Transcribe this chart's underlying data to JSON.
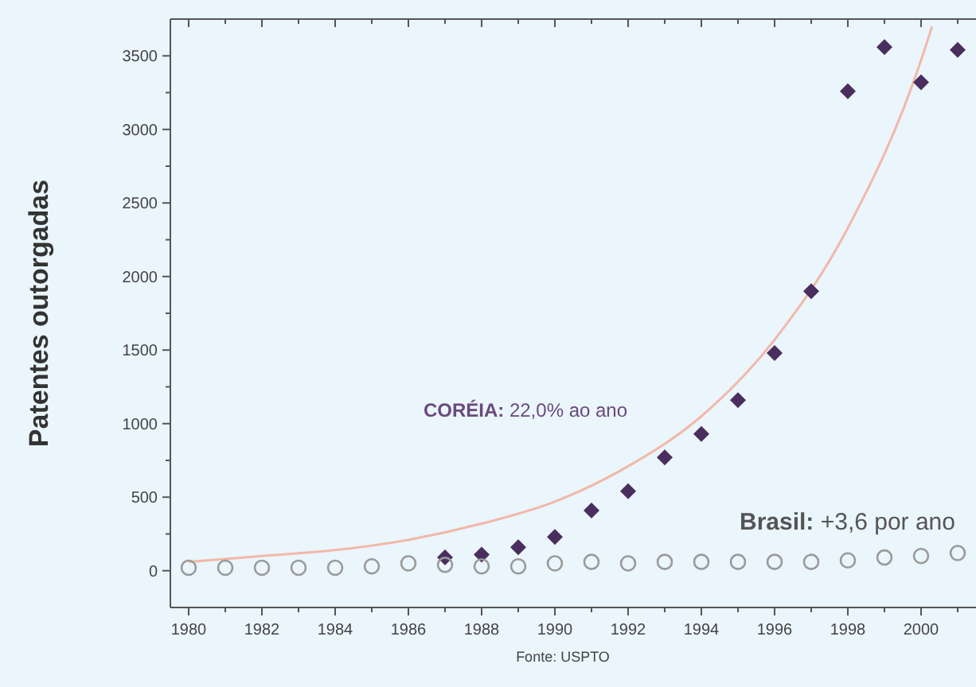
{
  "chart_data": {
    "type": "scatter",
    "ylabel": "Patentes outorgadas",
    "xlim": [
      1979.5,
      2001.5
    ],
    "ylim": [
      -250,
      3750
    ],
    "xticks": [
      1980,
      {
        "value": 1981,
        "label": null
      },
      1982,
      {
        "value": 1983,
        "label": null
      },
      1984,
      {
        "value": 1985,
        "label": null
      },
      1986,
      {
        "value": 1987,
        "label": null
      },
      1988,
      {
        "value": 1989,
        "label": null
      },
      1990,
      {
        "value": 1991,
        "label": null
      },
      1992,
      {
        "value": 1993,
        "label": null
      },
      1994,
      {
        "value": 1995,
        "label": null
      },
      1996,
      {
        "value": 1997,
        "label": null
      },
      1998,
      {
        "value": 1999,
        "label": null
      },
      2000,
      {
        "value": 2001,
        "label": null
      }
    ],
    "yticks": [
      0,
      {
        "value": 250,
        "label": null
      },
      500,
      {
        "value": 750,
        "label": null
      },
      1000,
      {
        "value": 1250,
        "label": null
      },
      1500,
      {
        "value": 1750,
        "label": null
      },
      2000,
      {
        "value": 2250,
        "label": null
      },
      2500,
      {
        "value": 2750,
        "label": null
      },
      3000,
      {
        "value": 3250,
        "label": null
      },
      3500
    ],
    "grid": false,
    "series": [
      {
        "type": "line",
        "marker": "none",
        "line_style": "solid",
        "color": "#f2b8a8",
        "x": [
          1980,
          1982,
          1984,
          1986,
          1988,
          1990,
          1992,
          1994,
          1996,
          1998,
          2000,
          2000.3
        ],
        "values": [
          60,
          100,
          140,
          210,
          320,
          470,
          710,
          1050,
          1570,
          2330,
          3470,
          3700
        ]
      },
      {
        "marker": "diamond",
        "color": "#4a2f5e",
        "x": [
          1987,
          1988,
          1989,
          1990,
          1991,
          1992,
          1993,
          1994,
          1995,
          1996,
          1997,
          1998,
          1999,
          2000,
          2001
        ],
        "values": [
          90,
          110,
          160,
          230,
          410,
          540,
          770,
          930,
          1160,
          1480,
          1900,
          3260,
          3560,
          3320,
          3540
        ]
      },
      {
        "marker": "circle",
        "color": "#9a9a9a",
        "x": [
          1980,
          1981,
          1982,
          1983,
          1984,
          1985,
          1986,
          1987,
          1988,
          1989,
          1990,
          1991,
          1992,
          1993,
          1994,
          1995,
          1996,
          1997,
          1998,
          1999,
          2000,
          2001
        ],
        "values": [
          20,
          20,
          20,
          20,
          20,
          30,
          50,
          40,
          30,
          30,
          50,
          60,
          50,
          60,
          60,
          60,
          60,
          60,
          70,
          90,
          100,
          120
        ]
      }
    ],
    "annotations": [
      "CORÉIA: 22,0% ao ano",
      "Brasil: +3,6 por ano",
      "Fonte: USPTO"
    ]
  }
}
